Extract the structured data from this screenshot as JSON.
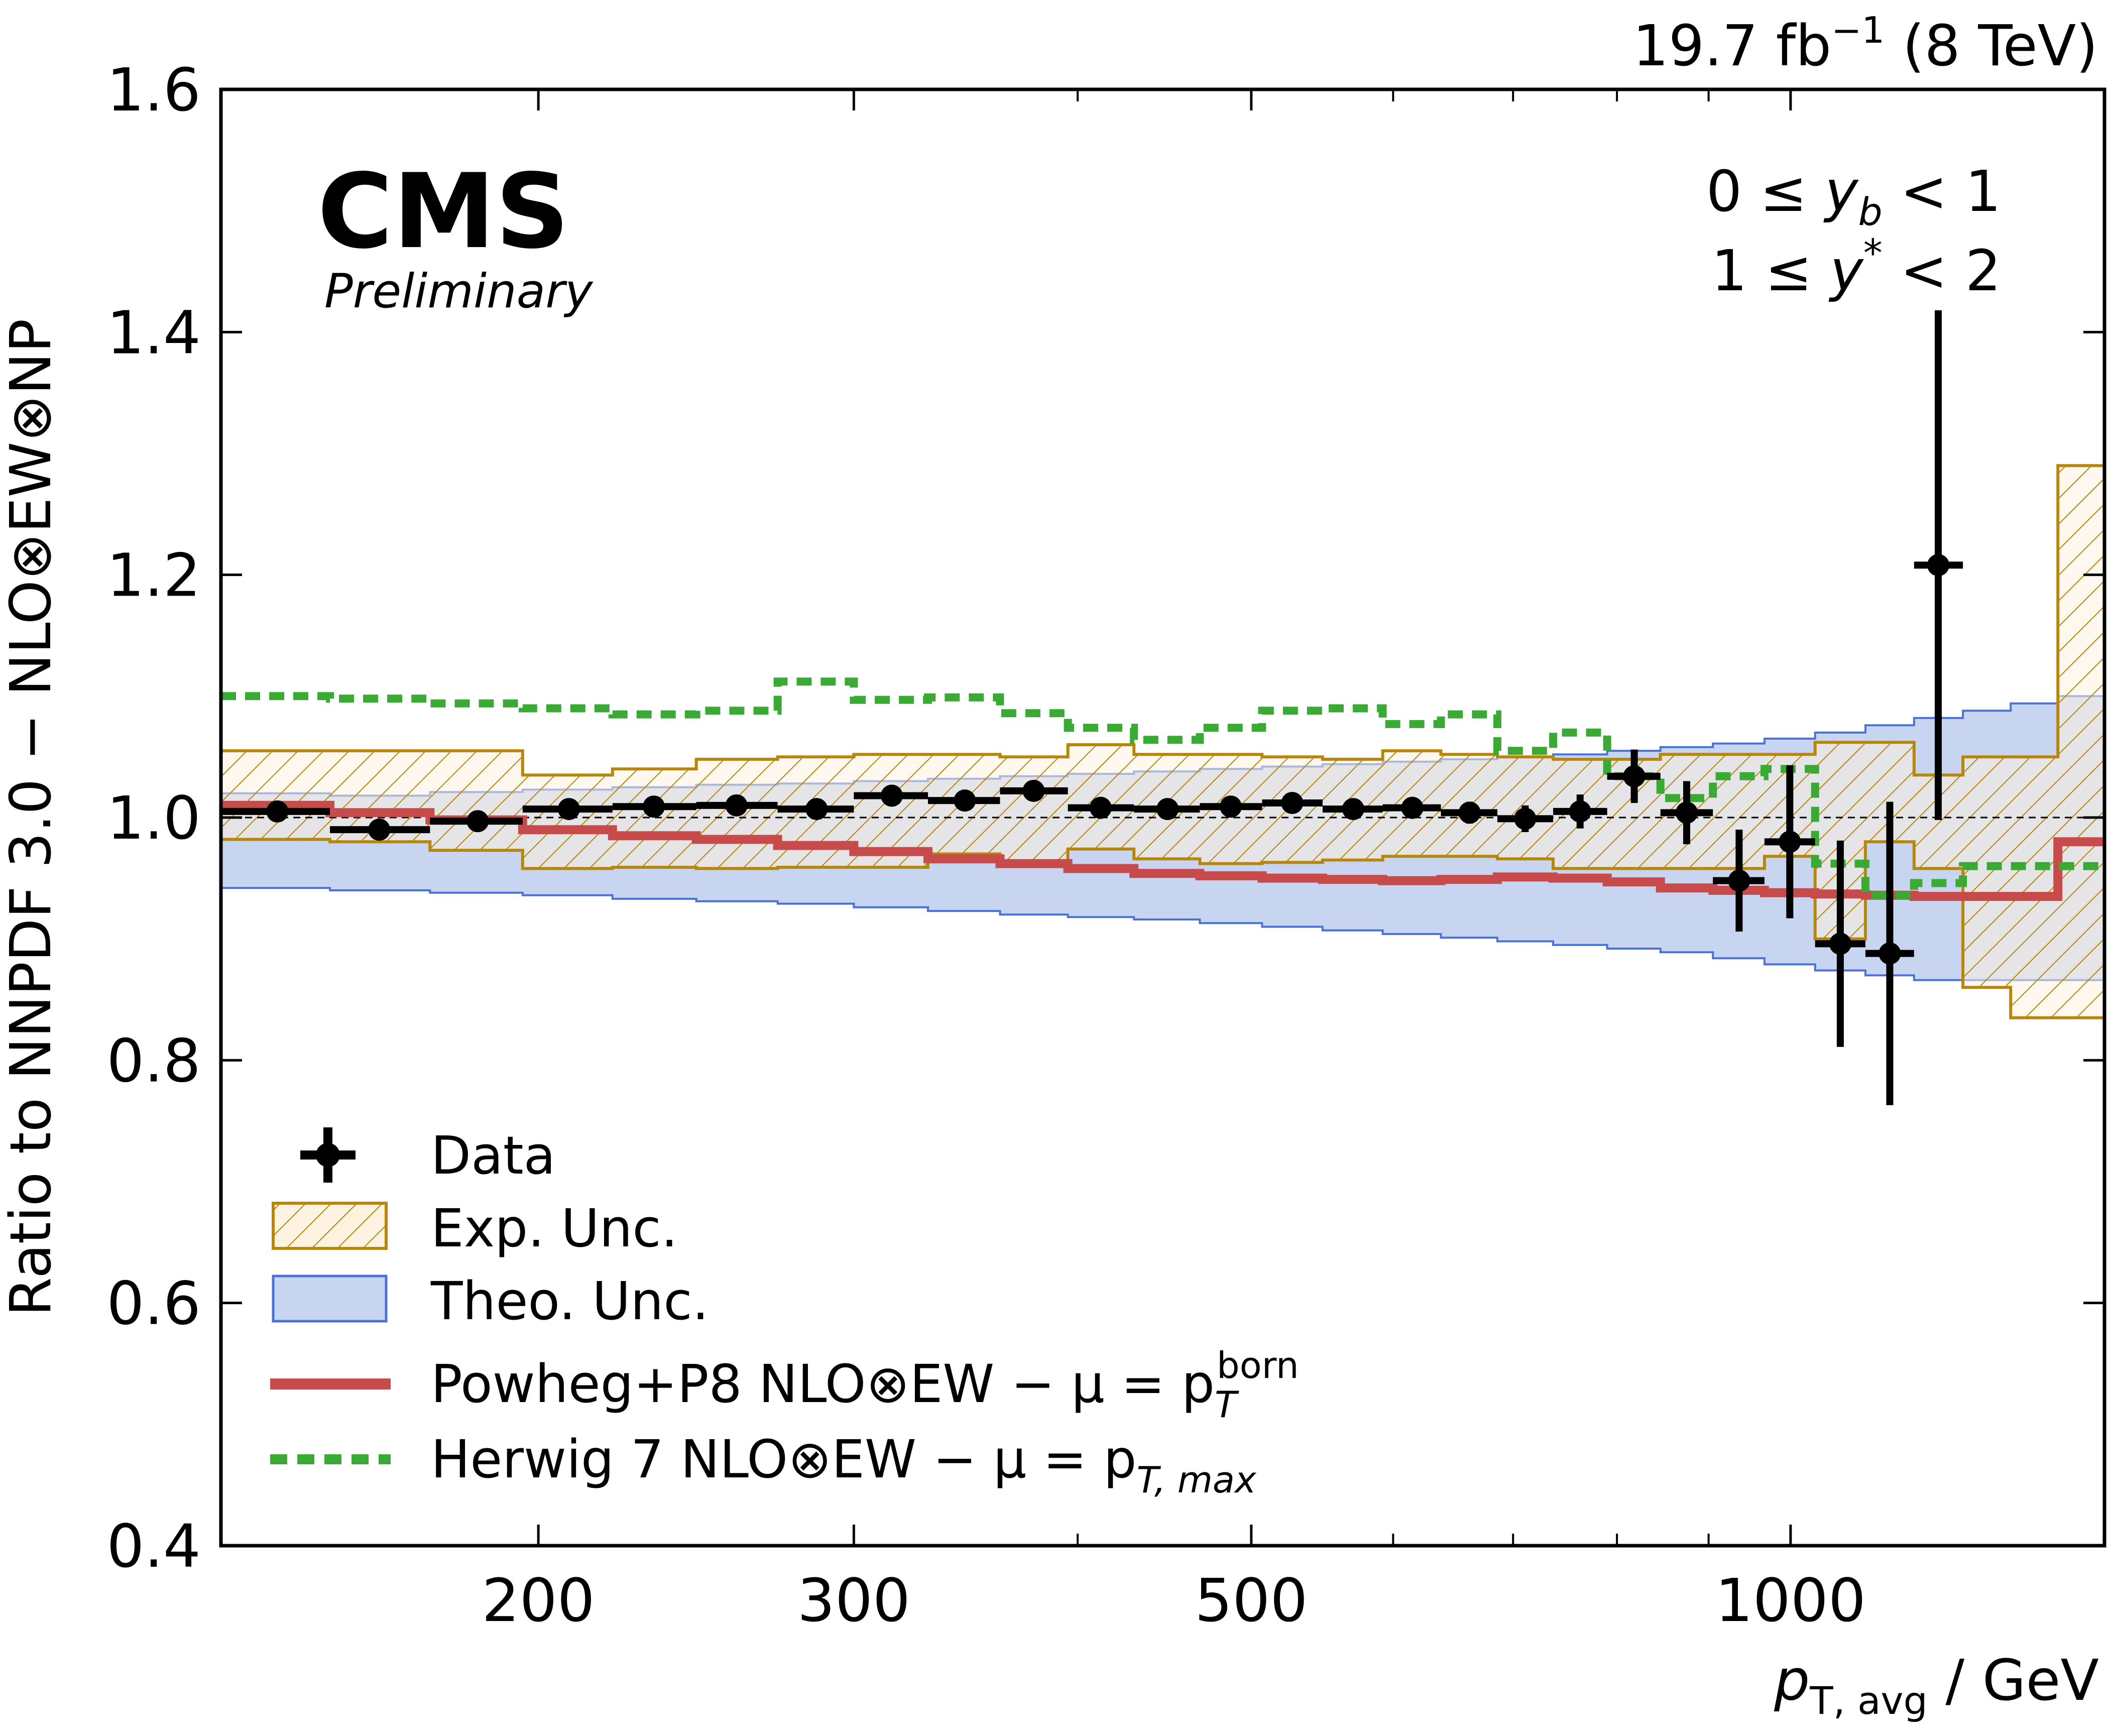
{
  "chart_data": {
    "type": "line",
    "xscale": "log",
    "xlim": [
      133,
      1497
    ],
    "ylim": [
      0.4,
      1.6
    ],
    "x_ticks": [
      {
        "value": 200,
        "label": "200"
      },
      {
        "value": 300,
        "label": "300"
      },
      {
        "value": 500,
        "label": "500"
      },
      {
        "value": 1000,
        "label": "1000"
      }
    ],
    "x_minor_ticks": [
      400,
      600,
      700,
      800,
      900
    ],
    "y_ticks": [
      {
        "value": 0.4,
        "label": "0.4"
      },
      {
        "value": 0.6,
        "label": "0.6"
      },
      {
        "value": 0.8,
        "label": "0.8"
      },
      {
        "value": 1.0,
        "label": "1.0"
      },
      {
        "value": 1.2,
        "label": "1.2"
      },
      {
        "value": 1.4,
        "label": "1.4"
      },
      {
        "value": 1.6,
        "label": "1.6"
      }
    ],
    "reference_line": 1.0,
    "lumi_label": {
      "value": "19.7 fb",
      "exponent": "−1",
      "energy": " (8 TeV)"
    },
    "experiment": "CMS",
    "status": "Preliminary",
    "region": {
      "line1": {
        "a": "0 ≤ ",
        "var": "y",
        "sub": "b",
        "b": " < 1"
      },
      "line2": {
        "a": "1 ≤ ",
        "var": "y",
        "sup": "*",
        "b": " < 2"
      }
    },
    "ylabel": "Ratio to NNPDF 3.0 − NLO⊗EW⊗NP",
    "xlabel": {
      "var": "p",
      "sub": "T, avg",
      "rest": " / GeV"
    },
    "bin_edges": [
      133,
      153,
      174,
      196,
      220,
      245,
      272,
      300,
      330,
      362,
      395,
      430,
      468,
      507,
      548,
      592,
      638,
      686,
      737,
      790,
      846,
      905,
      967,
      1032,
      1101,
      1172,
      1248,
      1327,
      1410,
      1497
    ],
    "series": [
      {
        "name": "Data",
        "kind": "points",
        "x": [
          143,
          163,
          185,
          208,
          232,
          258,
          286,
          315,
          346,
          378,
          412,
          449,
          487,
          527,
          570,
          615,
          662,
          711,
          763,
          818,
          875,
          936,
          999,
          1066,
          1136,
          1209,
          1287,
          1368,
          1453
        ],
        "y": [
          1.005,
          0.99,
          0.997,
          1.007,
          1.009,
          1.01,
          1.007,
          1.018,
          1.014,
          1.022,
          1.008,
          1.007,
          1.009,
          1.012,
          1.007,
          1.008,
          1.004,
          0.999,
          1.005,
          1.034,
          1.004,
          0.948,
          0.98,
          0.896,
          0.888,
          1.208,
          null,
          null,
          null
        ],
        "yerr": [
          0.005,
          0.006,
          0.007,
          0.006,
          0.006,
          0.005,
          0.005,
          0.006,
          0.006,
          0.006,
          0.006,
          0.006,
          0.006,
          0.007,
          0.007,
          0.008,
          0.009,
          0.011,
          0.014,
          0.022,
          0.026,
          0.042,
          0.063,
          0.085,
          0.125,
          0.21,
          null,
          null,
          null
        ]
      }
    ],
    "bands": [
      {
        "name": "Exp. Unc.",
        "fill": "#fdf3e0",
        "edge": "#b8860b",
        "hatch": true,
        "lo": [
          0.982,
          0.98,
          0.973,
          0.958,
          0.959,
          0.958,
          0.959,
          0.959,
          0.97,
          0.96,
          0.974,
          0.966,
          0.962,
          0.963,
          0.965,
          0.968,
          0.968,
          0.966,
          0.958,
          0.958,
          0.958,
          0.958,
          0.968,
          0.9,
          0.98,
          0.958,
          0.86,
          0.835,
          0.835
        ],
        "hi": [
          1.055,
          1.055,
          1.055,
          1.035,
          1.04,
          1.048,
          1.05,
          1.052,
          1.052,
          1.05,
          1.06,
          1.052,
          1.052,
          1.05,
          1.048,
          1.055,
          1.052,
          1.05,
          1.048,
          1.048,
          1.052,
          1.052,
          1.052,
          1.062,
          1.062,
          1.035,
          1.05,
          1.05,
          1.29
        ]
      },
      {
        "name": "Theo. Unc.",
        "fill": "#c7d5f0",
        "edge": "#4a72d6",
        "hatch": false,
        "lo": [
          0.942,
          0.94,
          0.938,
          0.936,
          0.933,
          0.931,
          0.929,
          0.926,
          0.923,
          0.92,
          0.918,
          0.916,
          0.913,
          0.91,
          0.907,
          0.904,
          0.901,
          0.898,
          0.895,
          0.892,
          0.889,
          0.884,
          0.879,
          0.874,
          0.87,
          0.866,
          0.866,
          0.866,
          0.866
        ],
        "hi": [
          1.02,
          1.018,
          1.021,
          1.023,
          1.025,
          1.027,
          1.028,
          1.03,
          1.032,
          1.034,
          1.036,
          1.038,
          1.04,
          1.042,
          1.044,
          1.046,
          1.048,
          1.05,
          1.052,
          1.055,
          1.058,
          1.061,
          1.065,
          1.07,
          1.076,
          1.082,
          1.088,
          1.094,
          1.1
        ]
      }
    ],
    "lines": [
      {
        "name": "Powheg+P8 NLO⊗EW − μ = p",
        "name_sub": "T",
        "name_sup": "born",
        "color": "#c84b4b",
        "style": "solid",
        "y": [
          1.01,
          1.004,
          0.998,
          0.99,
          0.985,
          0.982,
          0.977,
          0.972,
          0.966,
          0.962,
          0.958,
          0.954,
          0.952,
          0.95,
          0.949,
          0.948,
          0.949,
          0.951,
          0.95,
          0.947,
          0.942,
          0.94,
          0.938,
          0.937,
          0.936,
          0.935,
          0.935,
          0.935,
          0.98
        ]
      },
      {
        "name": "Herwig 7 NLO⊗EW − μ = p",
        "name_sub": "T, max",
        "color": "#3aaa35",
        "style": "dashed",
        "y": [
          1.1,
          1.098,
          1.094,
          1.09,
          1.085,
          1.088,
          1.112,
          1.097,
          1.099,
          1.086,
          1.074,
          1.064,
          1.074,
          1.088,
          1.09,
          1.077,
          1.085,
          1.055,
          1.07,
          1.034,
          1.016,
          1.034,
          1.04,
          0.962,
          0.936,
          0.946,
          0.96,
          0.96,
          0.96
        ]
      }
    ],
    "legend": {
      "placement": "lower-left",
      "entries": [
        "Data",
        "Exp. Unc.",
        "Theo. Unc.",
        "Powheg+P8 NLO⊗EW − μ = p",
        "Herwig 7 NLO⊗EW − μ = p"
      ]
    }
  }
}
